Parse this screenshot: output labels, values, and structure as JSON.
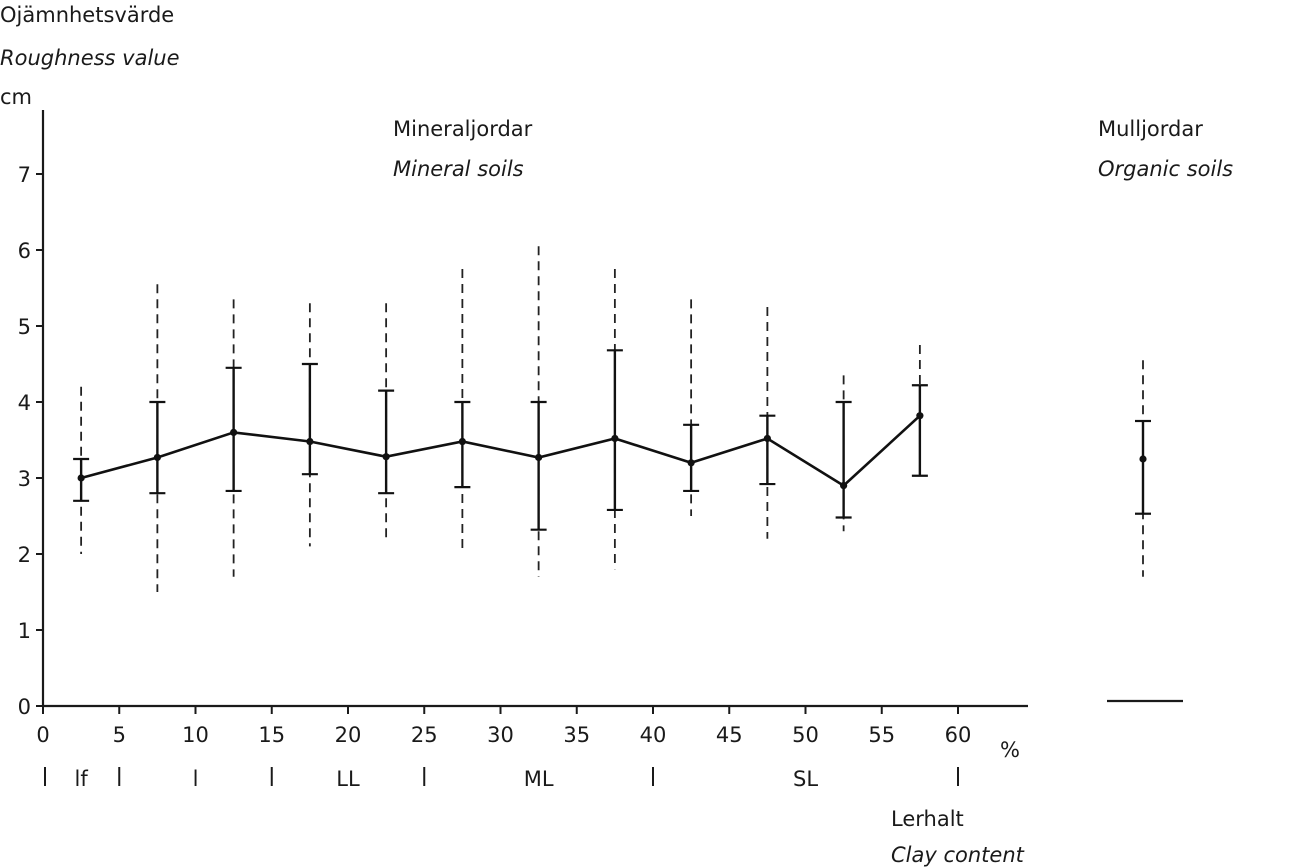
{
  "chart_data": {
    "type": "line",
    "ylabel_sv": "Ojämnhetsvärde",
    "ylabel_en": "Roughness value",
    "yunit": "cm",
    "xlabel_sv": "Lerhalt",
    "xlabel_en": "Clay content",
    "xunit": "%",
    "xlim": [
      0,
      60
    ],
    "ylim": [
      0,
      7
    ],
    "x_ticks": [
      0,
      5,
      10,
      15,
      20,
      25,
      30,
      35,
      40,
      45,
      50,
      55,
      60
    ],
    "y_ticks": [
      0,
      1,
      2,
      3,
      4,
      5,
      6,
      7
    ],
    "annotations": {
      "mineral_sv": "Mineraljordar",
      "mineral_en": "Mineral soils",
      "organic_sv": "Mulljordar",
      "organic_en": "Organic soils"
    },
    "soil_classes": [
      {
        "label": "lf",
        "center": 2.5
      },
      {
        "label": "l",
        "center": 10
      },
      {
        "label": "LL",
        "center": 20
      },
      {
        "label": "ML",
        "center": 32.5
      },
      {
        "label": "SL",
        "center": 50
      }
    ],
    "soil_class_bounds": [
      0,
      5,
      15,
      25,
      40,
      60
    ],
    "series": [
      {
        "points": [
          {
            "x": 2.5,
            "mean": 3.0,
            "sd_low": 2.7,
            "sd_high": 3.25,
            "min": 2.0,
            "max": 4.2
          },
          {
            "x": 7.5,
            "mean": 3.27,
            "sd_low": 2.8,
            "sd_high": 4.0,
            "min": 1.5,
            "max": 5.55
          },
          {
            "x": 12.5,
            "mean": 3.6,
            "sd_low": 2.83,
            "sd_high": 4.45,
            "min": 1.7,
            "max": 5.35
          },
          {
            "x": 17.5,
            "mean": 3.48,
            "sd_low": 3.05,
            "sd_high": 4.5,
            "min": 2.1,
            "max": 5.3
          },
          {
            "x": 22.5,
            "mean": 3.28,
            "sd_low": 2.8,
            "sd_high": 4.15,
            "min": 2.2,
            "max": 5.3
          },
          {
            "x": 27.5,
            "mean": 3.48,
            "sd_low": 2.88,
            "sd_high": 4.0,
            "min": 2.0,
            "max": 5.75
          },
          {
            "x": 32.5,
            "mean": 3.27,
            "sd_low": 2.32,
            "sd_high": 4.0,
            "min": 1.7,
            "max": 6.05
          },
          {
            "x": 37.5,
            "mean": 3.52,
            "sd_low": 2.58,
            "sd_high": 4.68,
            "min": 1.8,
            "max": 5.75
          },
          {
            "x": 42.5,
            "mean": 3.2,
            "sd_low": 2.83,
            "sd_high": 3.7,
            "min": 2.5,
            "max": 5.35
          },
          {
            "x": 47.5,
            "mean": 3.52,
            "sd_low": 2.92,
            "sd_high": 3.82,
            "min": 2.2,
            "max": 5.25
          },
          {
            "x": 52.5,
            "mean": 2.9,
            "sd_low": 2.48,
            "sd_high": 4.0,
            "min": 2.3,
            "max": 4.35
          },
          {
            "x": 57.5,
            "mean": 3.82,
            "sd_low": 3.03,
            "sd_high": 4.22,
            "min": 3.03,
            "max": 4.75
          }
        ]
      }
    ],
    "organic_point": {
      "mean": 3.25,
      "sd_low": 2.53,
      "sd_high": 3.75,
      "min": 1.7,
      "max": 4.55
    }
  }
}
